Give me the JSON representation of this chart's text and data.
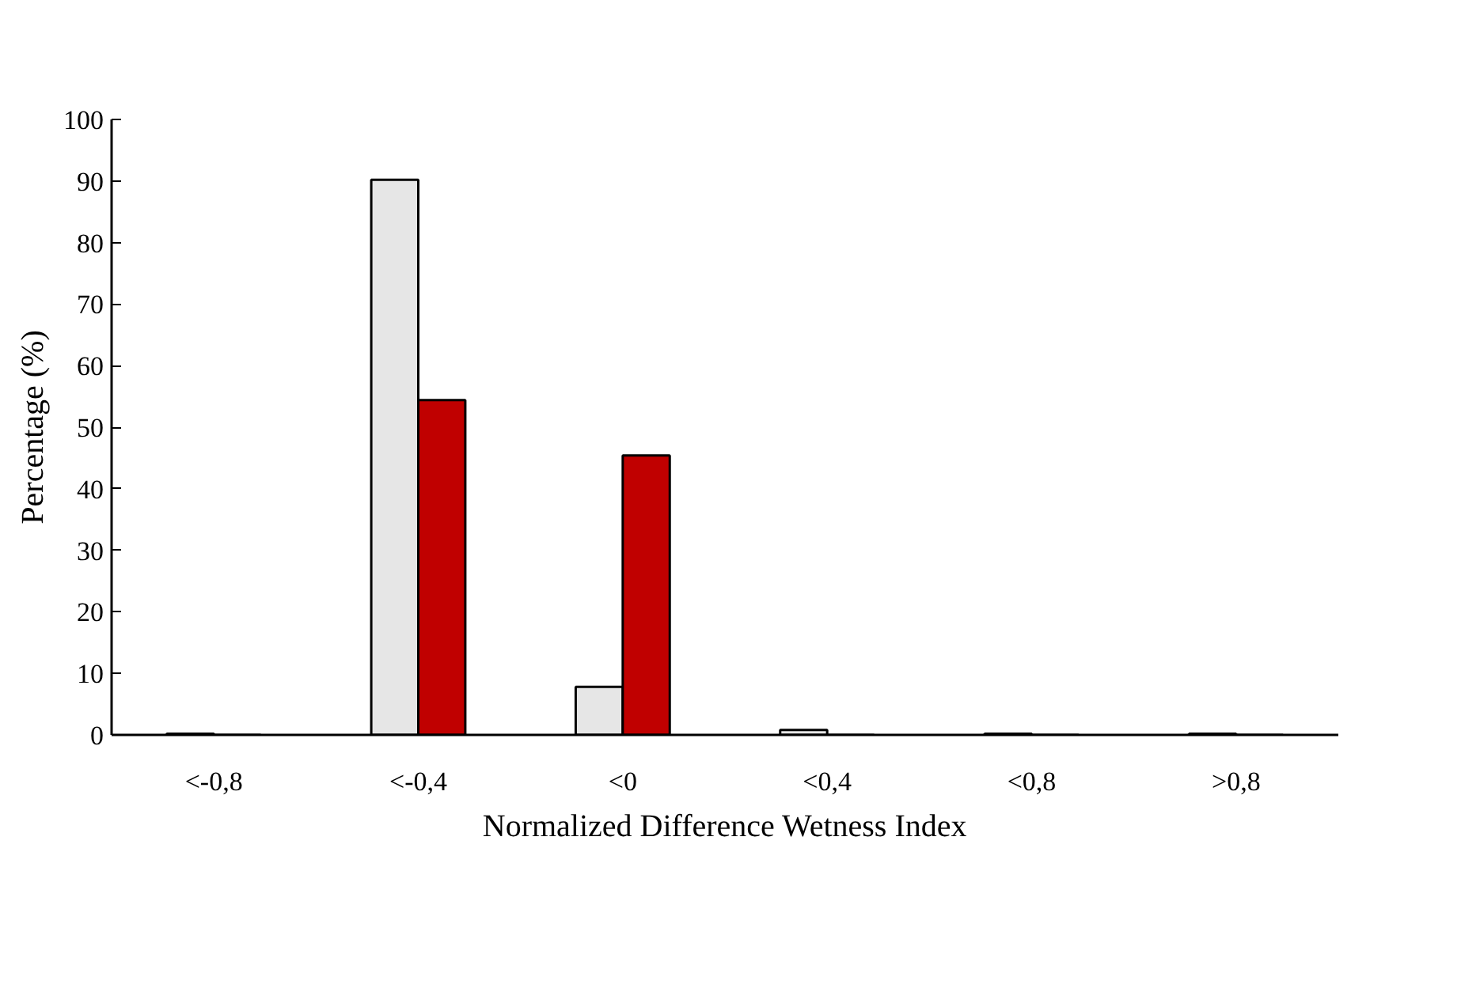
{
  "chart_data": {
    "type": "bar",
    "xlabel": "Normalized Difference Wetness Index",
    "ylabel": "Percentage (%)",
    "categories": [
      "<-0,8",
      "<-0,4",
      "<0",
      "<0,4",
      "<0,8",
      ">0,8"
    ],
    "series": [
      {
        "color": "#e6e6e6",
        "values": [
          0.2,
          90.2,
          7.8,
          0.8,
          0.2,
          0.2
        ]
      },
      {
        "color": "#c00000",
        "values": [
          0,
          54.4,
          45.4,
          0,
          0,
          0
        ]
      }
    ],
    "ylim": [
      0,
      100
    ],
    "yticks": [
      0,
      10,
      20,
      30,
      40,
      50,
      60,
      70,
      80,
      90,
      100
    ],
    "grid": false
  }
}
